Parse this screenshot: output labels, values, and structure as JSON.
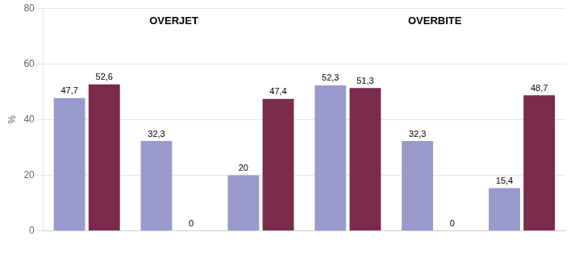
{
  "chart_data": {
    "type": "bar",
    "categories": [
      null,
      null,
      null,
      null,
      null,
      null
    ],
    "series": [
      {
        "color": "#9999cc",
        "values": [
          47.7,
          32.3,
          20,
          52.3,
          32.3,
          15.4
        ],
        "value_labels": [
          "47,7",
          "32,3",
          "20",
          "52,3",
          "32,3",
          "15,4"
        ]
      },
      {
        "color": "#7a2a4a",
        "values": [
          52.6,
          0,
          47.4,
          51.3,
          0,
          48.7
        ],
        "value_labels": [
          "52,6",
          "0",
          "47,4",
          "51,3",
          "0",
          "48,7"
        ]
      }
    ],
    "ylabel": "%",
    "ylim": [
      0,
      80
    ],
    "yticks": [
      0,
      20,
      40,
      60,
      80
    ],
    "grid": true,
    "data_labels": true,
    "annotations": [
      {
        "text": "OVERJET"
      },
      {
        "text": "OVERBITE"
      }
    ]
  }
}
